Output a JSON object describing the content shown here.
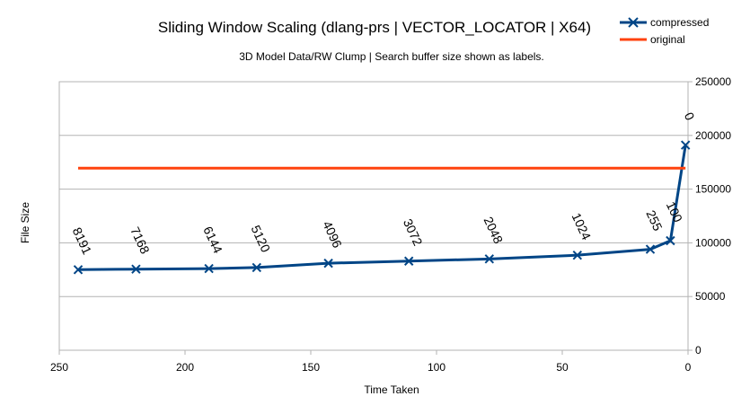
{
  "chart_data": {
    "type": "line",
    "title": "Sliding Window Scaling (dlang-prs | VECTOR_LOCATOR | X64)",
    "subtitle": "3D Model Data/RW Clump | Search buffer size shown as labels.",
    "xlabel": "Time Taken",
    "ylabel": "File Size",
    "xlim": [
      250,
      0
    ],
    "ylim": [
      0,
      250000
    ],
    "x_ticks": [
      "250",
      "200",
      "150",
      "100",
      "50",
      "0"
    ],
    "y_ticks": [
      "0",
      "50000",
      "100000",
      "150000",
      "200000",
      "250000"
    ],
    "grid": true,
    "legend_position": "top-right",
    "series": [
      {
        "name": "compressed",
        "color": "#004586",
        "marker": "x",
        "points": [
          {
            "x": 242.5,
            "y": 75000,
            "label": "8191"
          },
          {
            "x": 219.5,
            "y": 75500,
            "label": "7168"
          },
          {
            "x": 190.5,
            "y": 76000,
            "label": "6144"
          },
          {
            "x": 171.5,
            "y": 77000,
            "label": "5120"
          },
          {
            "x": 143.0,
            "y": 81000,
            "label": "4096"
          },
          {
            "x": 111.0,
            "y": 83000,
            "label": "3072"
          },
          {
            "x": 79.0,
            "y": 85000,
            "label": "2048"
          },
          {
            "x": 44.0,
            "y": 88500,
            "label": "1024"
          },
          {
            "x": 15.0,
            "y": 94000,
            "label": "255"
          },
          {
            "x": 7.0,
            "y": 102000,
            "label": "100"
          },
          {
            "x": 1.0,
            "y": 191000,
            "label": "0"
          }
        ]
      },
      {
        "name": "original",
        "color": "#ff420e",
        "marker": "none",
        "points": [
          {
            "x": 242.5,
            "y": 169500
          },
          {
            "x": 1.0,
            "y": 169500
          }
        ]
      }
    ]
  }
}
